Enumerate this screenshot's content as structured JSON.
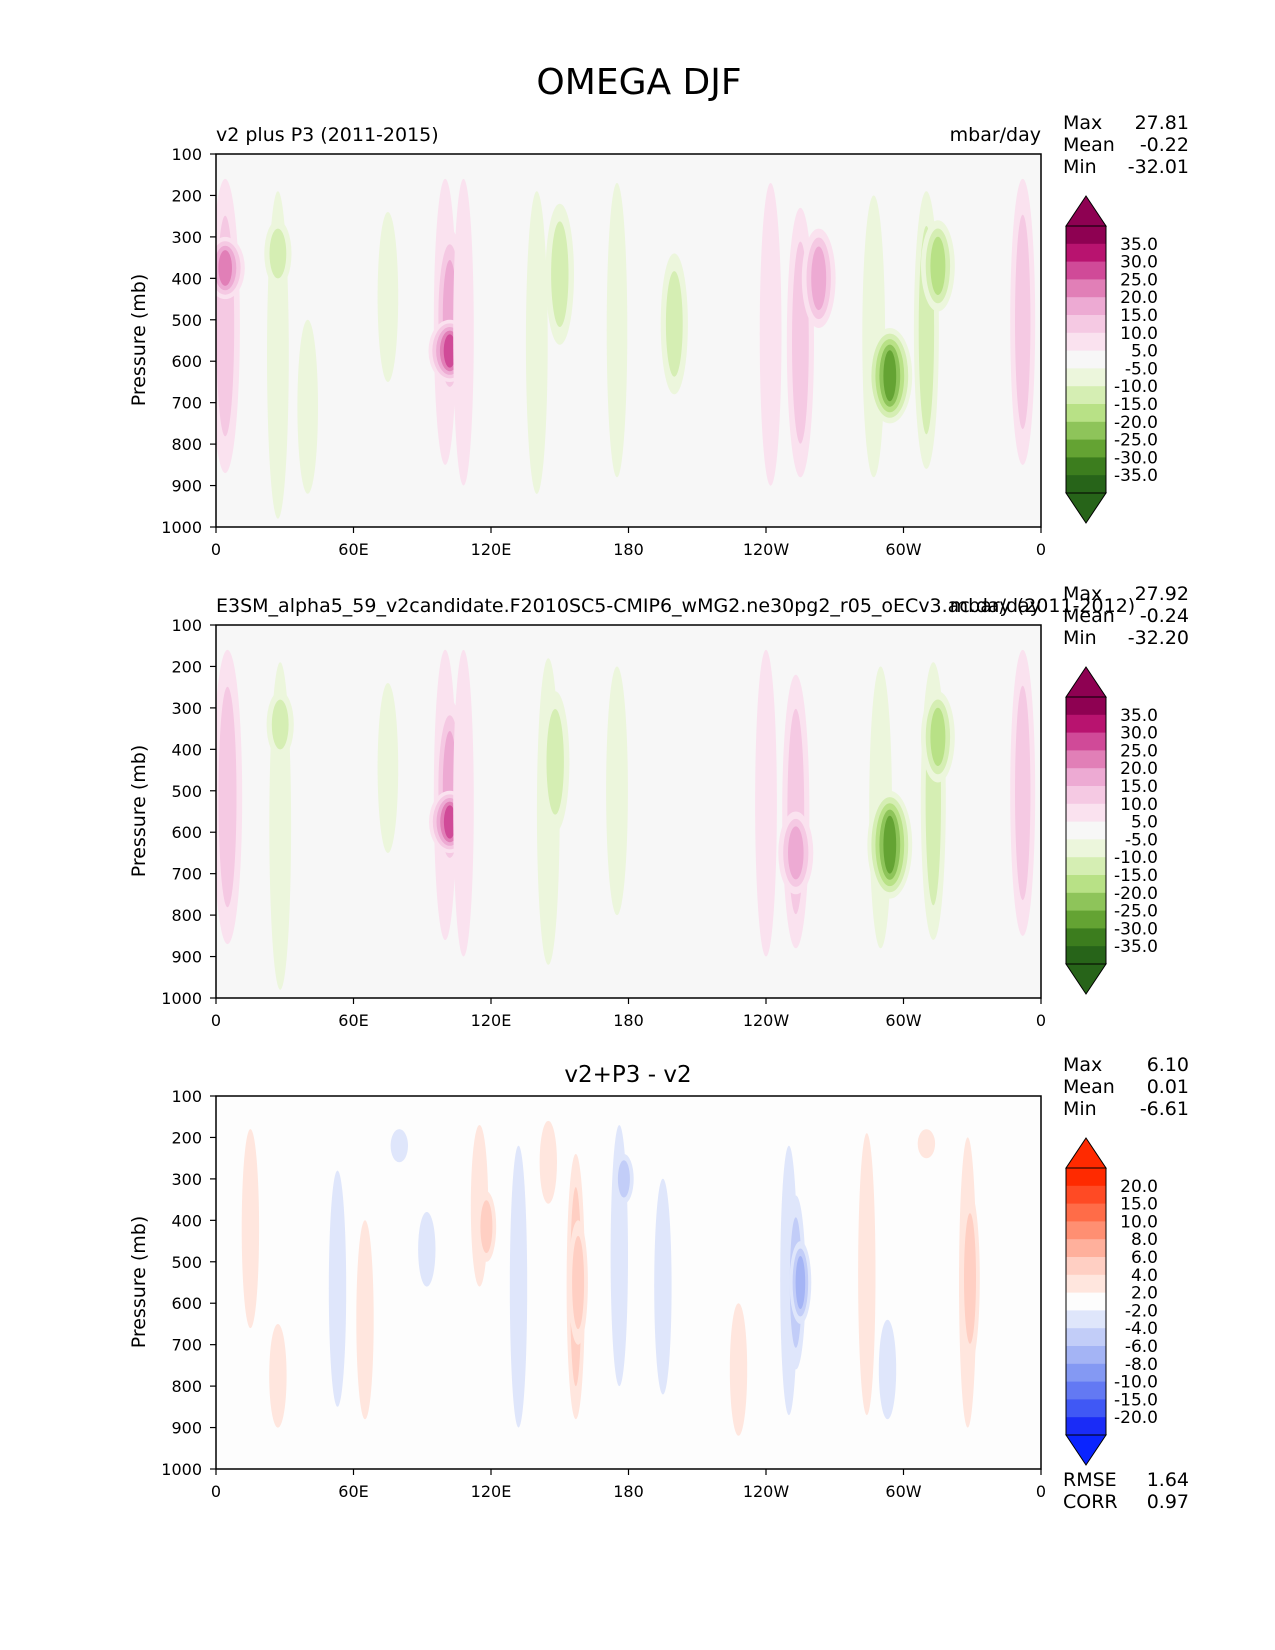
{
  "figure": {
    "title": "OMEGA DJF"
  },
  "chart_data": [
    {
      "type": "heatmap",
      "left_title": "v2 plus P3 (2011-2015)",
      "center_title": "",
      "units": "mbar/day",
      "ylabel": "Pressure (mb)",
      "y_ticks": [
        "100",
        "200",
        "300",
        "400",
        "500",
        "600",
        "700",
        "800",
        "900",
        "1000"
      ],
      "x_ticks": [
        "0",
        "60E",
        "120E",
        "180",
        "120W",
        "60W",
        "0"
      ],
      "ylim": [
        100,
        1000
      ],
      "xlim": [
        0,
        360
      ],
      "stats": [
        {
          "label": "Max",
          "value": "27.81"
        },
        {
          "label": "Mean",
          "value": "-0.22"
        },
        {
          "label": "Min",
          "value": "-32.01"
        }
      ],
      "colorbar": {
        "levels": [
          "35.0",
          "30.0",
          "25.0",
          "20.0",
          "15.0",
          "10.0",
          "5.0",
          "-5.0",
          "-10.0",
          "-15.0",
          "-20.0",
          "-25.0",
          "-30.0",
          "-35.0"
        ],
        "colors": [
          "#8e0152",
          "#b8136f",
          "#d04a98",
          "#e17fb7",
          "#edaad3",
          "#f5c9e3",
          "#fae2ef",
          "#f7f7f7",
          "#ecf6dc",
          "#d5eeb3",
          "#b8e186",
          "#8ec45a",
          "#64a333",
          "#3c7d1e",
          "#276419"
        ],
        "low_cap": "#276419",
        "high_cap": "#8e0152"
      },
      "features": [
        {
          "lon": 4,
          "pmin": 160,
          "pmax": 870,
          "value": 14
        },
        {
          "lon": 4,
          "pmin": 300,
          "pmax": 450,
          "value": 23
        },
        {
          "lon": 27,
          "pmin": 190,
          "pmax": 980,
          "value": -7
        },
        {
          "lon": 27,
          "pmin": 260,
          "pmax": 420,
          "value": -12
        },
        {
          "lon": 40,
          "pmin": 500,
          "pmax": 920,
          "value": -6
        },
        {
          "lon": 75,
          "pmin": 240,
          "pmax": 650,
          "value": -6
        },
        {
          "lon": 100,
          "pmin": 160,
          "pmax": 850,
          "value": 8
        },
        {
          "lon": 102,
          "pmin": 280,
          "pmax": 700,
          "value": 16
        },
        {
          "lon": 102,
          "pmin": 500,
          "pmax": 650,
          "value": 26
        },
        {
          "lon": 108,
          "pmin": 160,
          "pmax": 900,
          "value": 6
        },
        {
          "lon": 140,
          "pmin": 190,
          "pmax": 920,
          "value": -7
        },
        {
          "lon": 150,
          "pmin": 220,
          "pmax": 560,
          "value": -13
        },
        {
          "lon": 175,
          "pmin": 170,
          "pmax": 880,
          "value": -6
        },
        {
          "lon": 200,
          "pmin": 340,
          "pmax": 680,
          "value": -12
        },
        {
          "lon": 242,
          "pmin": 170,
          "pmax": 900,
          "value": 7
        },
        {
          "lon": 255,
          "pmin": 230,
          "pmax": 880,
          "value": 12
        },
        {
          "lon": 263,
          "pmin": 280,
          "pmax": 520,
          "value": 18
        },
        {
          "lon": 287,
          "pmin": 200,
          "pmax": 880,
          "value": -8
        },
        {
          "lon": 294,
          "pmin": 520,
          "pmax": 750,
          "value": -28
        },
        {
          "lon": 310,
          "pmin": 190,
          "pmax": 860,
          "value": -10
        },
        {
          "lon": 315,
          "pmin": 260,
          "pmax": 480,
          "value": -18
        },
        {
          "lon": 352,
          "pmin": 160,
          "pmax": 850,
          "value": 10
        }
      ]
    },
    {
      "type": "heatmap",
      "left_title": "E3SM_alpha5_59_v2candidate.F2010SC5-CMIP6_wMG2.ne30pg2_r05_oECv3.ac.day (2011-2012)",
      "center_title": "",
      "units": "mbar/day",
      "ylabel": "Pressure (mb)",
      "y_ticks": [
        "100",
        "200",
        "300",
        "400",
        "500",
        "600",
        "700",
        "800",
        "900",
        "1000"
      ],
      "x_ticks": [
        "0",
        "60E",
        "120E",
        "180",
        "120W",
        "60W",
        "0"
      ],
      "ylim": [
        100,
        1000
      ],
      "xlim": [
        0,
        360
      ],
      "stats": [
        {
          "label": "Max",
          "value": "27.92"
        },
        {
          "label": "Mean",
          "value": "-0.24"
        },
        {
          "label": "Min",
          "value": "-32.20"
        }
      ],
      "colorbar": {
        "levels": [
          "35.0",
          "30.0",
          "25.0",
          "20.0",
          "15.0",
          "10.0",
          "5.0",
          "-5.0",
          "-10.0",
          "-15.0",
          "-20.0",
          "-25.0",
          "-30.0",
          "-35.0"
        ],
        "colors": [
          "#8e0152",
          "#b8136f",
          "#d04a98",
          "#e17fb7",
          "#edaad3",
          "#f5c9e3",
          "#fae2ef",
          "#f7f7f7",
          "#ecf6dc",
          "#d5eeb3",
          "#b8e186",
          "#8ec45a",
          "#64a333",
          "#3c7d1e",
          "#276419"
        ],
        "low_cap": "#276419",
        "high_cap": "#8e0152"
      },
      "features": [
        {
          "lon": 5,
          "pmin": 160,
          "pmax": 870,
          "value": 14
        },
        {
          "lon": 28,
          "pmin": 190,
          "pmax": 980,
          "value": -7
        },
        {
          "lon": 28,
          "pmin": 260,
          "pmax": 420,
          "value": -12
        },
        {
          "lon": 75,
          "pmin": 240,
          "pmax": 650,
          "value": -6
        },
        {
          "lon": 100,
          "pmin": 160,
          "pmax": 860,
          "value": 8
        },
        {
          "lon": 102,
          "pmin": 280,
          "pmax": 700,
          "value": 16
        },
        {
          "lon": 102,
          "pmin": 500,
          "pmax": 650,
          "value": 25
        },
        {
          "lon": 108,
          "pmin": 160,
          "pmax": 900,
          "value": 6
        },
        {
          "lon": 145,
          "pmin": 180,
          "pmax": 920,
          "value": -8
        },
        {
          "lon": 148,
          "pmin": 260,
          "pmax": 600,
          "value": -13
        },
        {
          "lon": 175,
          "pmin": 200,
          "pmax": 800,
          "value": -7
        },
        {
          "lon": 240,
          "pmin": 160,
          "pmax": 900,
          "value": 7
        },
        {
          "lon": 253,
          "pmin": 220,
          "pmax": 880,
          "value": 12
        },
        {
          "lon": 253,
          "pmin": 550,
          "pmax": 750,
          "value": 19
        },
        {
          "lon": 290,
          "pmin": 200,
          "pmax": 880,
          "value": -8
        },
        {
          "lon": 294,
          "pmin": 500,
          "pmax": 760,
          "value": -28
        },
        {
          "lon": 313,
          "pmin": 190,
          "pmax": 860,
          "value": -10
        },
        {
          "lon": 315,
          "pmin": 260,
          "pmax": 480,
          "value": -18
        },
        {
          "lon": 352,
          "pmin": 160,
          "pmax": 850,
          "value": 10
        }
      ]
    },
    {
      "type": "heatmap",
      "left_title": "",
      "center_title": "v2+P3 - v2",
      "units": "",
      "ylabel": "Pressure (mb)",
      "y_ticks": [
        "100",
        "200",
        "300",
        "400",
        "500",
        "600",
        "700",
        "800",
        "900",
        "1000"
      ],
      "x_ticks": [
        "0",
        "60E",
        "120E",
        "180",
        "120W",
        "60W",
        "0"
      ],
      "ylim": [
        100,
        1000
      ],
      "xlim": [
        0,
        360
      ],
      "stats": [
        {
          "label": "Max",
          "value": "6.10"
        },
        {
          "label": "Mean",
          "value": "0.01"
        },
        {
          "label": "Min",
          "value": "-6.61"
        }
      ],
      "colorbar": {
        "levels": [
          "20.0",
          "15.0",
          "10.0",
          "8.0",
          "6.0",
          "4.0",
          "2.0",
          "-2.0",
          "-4.0",
          "-6.0",
          "-8.0",
          "-10.0",
          "-15.0",
          "-20.0"
        ],
        "colors": [
          "#ff2a00",
          "#ff4a24",
          "#ff6c48",
          "#ff8f72",
          "#ffb09c",
          "#ffcfc3",
          "#ffe6de",
          "#fdfdfd",
          "#dfe6fb",
          "#c2cdf8",
          "#a4b4f5",
          "#8499f3",
          "#6379f3",
          "#4058f5",
          "#1a2cf7"
        ],
        "low_cap": "#0a24ff",
        "high_cap": "#ff2a00"
      },
      "features": [
        {
          "lon": 15,
          "pmin": 180,
          "pmax": 660,
          "value": 3
        },
        {
          "lon": 27,
          "pmin": 650,
          "pmax": 900,
          "value": 3
        },
        {
          "lon": 53,
          "pmin": 280,
          "pmax": 850,
          "value": -3
        },
        {
          "lon": 65,
          "pmin": 400,
          "pmax": 880,
          "value": 3
        },
        {
          "lon": 80,
          "pmin": 180,
          "pmax": 260,
          "value": -3
        },
        {
          "lon": 92,
          "pmin": 380,
          "pmax": 560,
          "value": -3
        },
        {
          "lon": 115,
          "pmin": 170,
          "pmax": 560,
          "value": 3
        },
        {
          "lon": 118,
          "pmin": 330,
          "pmax": 500,
          "value": 5
        },
        {
          "lon": 132,
          "pmin": 220,
          "pmax": 900,
          "value": -3
        },
        {
          "lon": 145,
          "pmin": 160,
          "pmax": 360,
          "value": 3
        },
        {
          "lon": 157,
          "pmin": 240,
          "pmax": 880,
          "value": 4
        },
        {
          "lon": 158,
          "pmin": 400,
          "pmax": 700,
          "value": 5
        },
        {
          "lon": 176,
          "pmin": 170,
          "pmax": 800,
          "value": -3
        },
        {
          "lon": 178,
          "pmin": 240,
          "pmax": 360,
          "value": -5
        },
        {
          "lon": 195,
          "pmin": 300,
          "pmax": 820,
          "value": -3
        },
        {
          "lon": 228,
          "pmin": 600,
          "pmax": 920,
          "value": 3
        },
        {
          "lon": 250,
          "pmin": 220,
          "pmax": 870,
          "value": -3
        },
        {
          "lon": 253,
          "pmin": 340,
          "pmax": 760,
          "value": -5
        },
        {
          "lon": 255,
          "pmin": 450,
          "pmax": 650,
          "value": -7
        },
        {
          "lon": 284,
          "pmin": 190,
          "pmax": 870,
          "value": 3
        },
        {
          "lon": 293,
          "pmin": 640,
          "pmax": 880,
          "value": -3
        },
        {
          "lon": 310,
          "pmin": 180,
          "pmax": 250,
          "value": 3
        },
        {
          "lon": 328,
          "pmin": 200,
          "pmax": 900,
          "value": 3
        },
        {
          "lon": 329,
          "pmin": 330,
          "pmax": 750,
          "value": 5
        }
      ],
      "metrics": [
        {
          "label": "RMSE",
          "value": "1.64"
        },
        {
          "label": "CORR",
          "value": "0.97"
        }
      ]
    }
  ]
}
